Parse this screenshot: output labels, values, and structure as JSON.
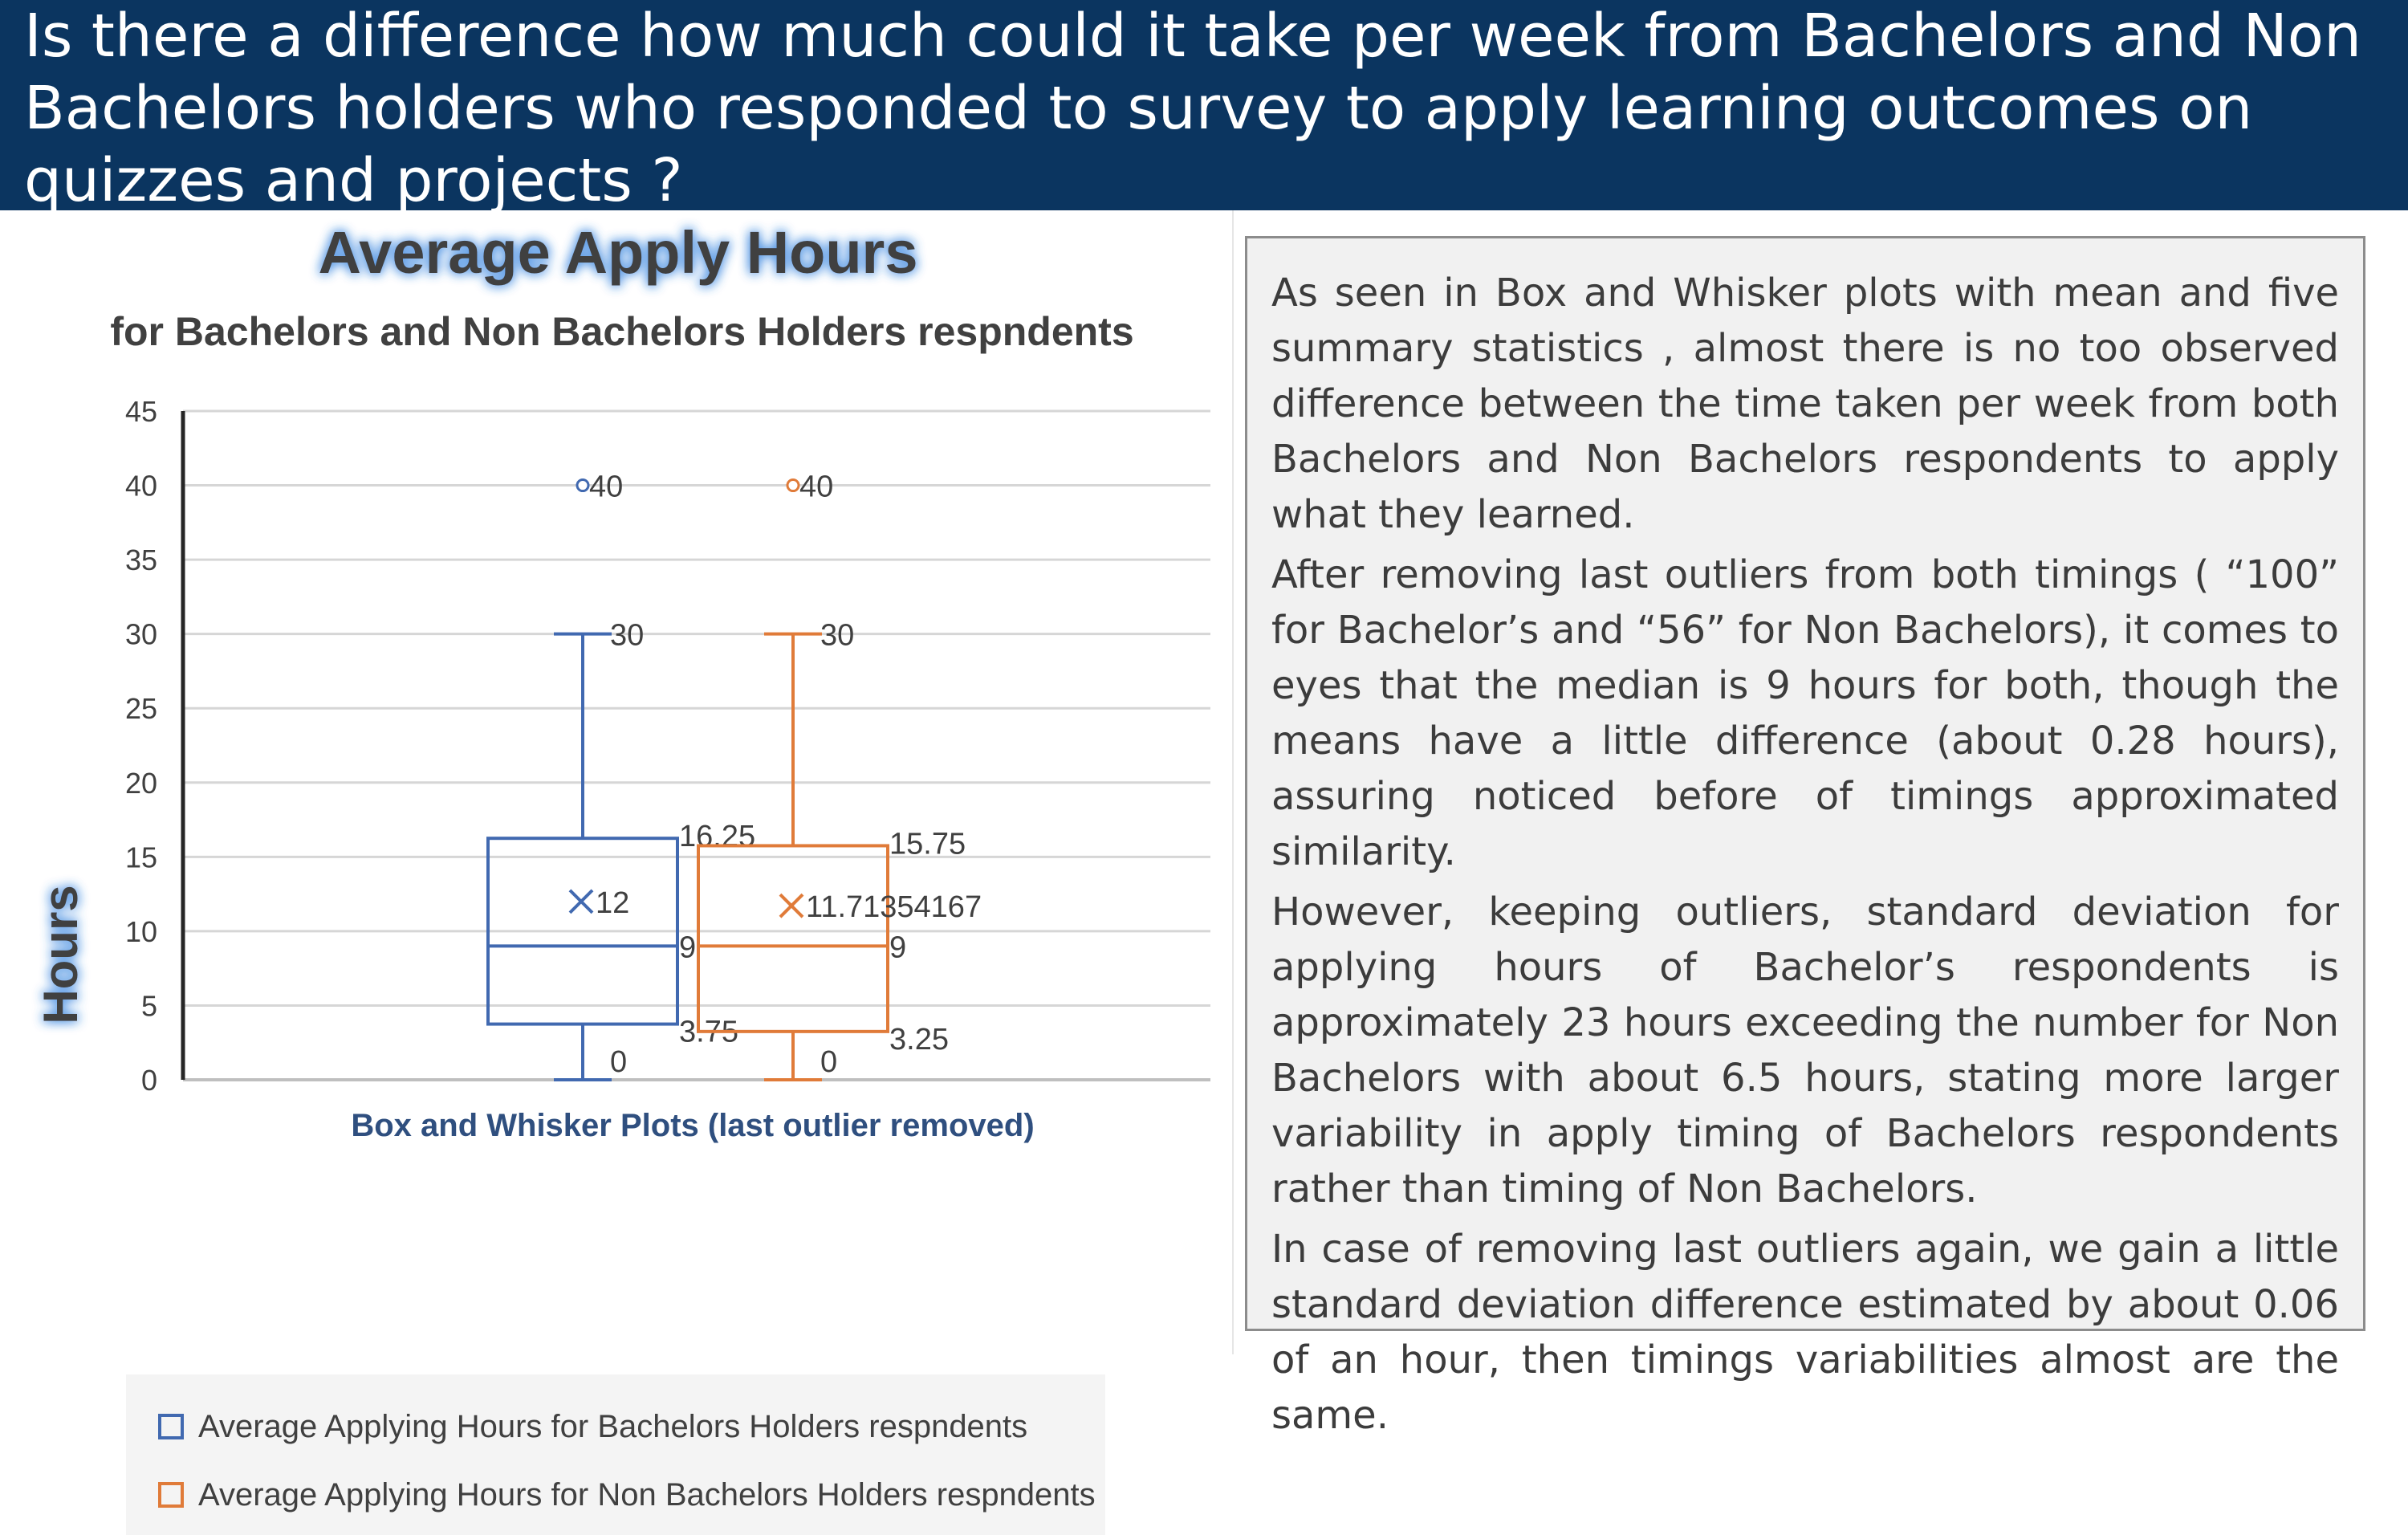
{
  "header": {
    "title": "Is there a difference how much could it take per week from Bachelors and Non Bachelors holders who responded to survey to apply learning outcomes on quizzes and projects ?"
  },
  "colors": {
    "header_bg": "#0b3560",
    "bachelors": "#4169b0",
    "non_bachelors": "#e07b39",
    "title_glow": "#4a90e2"
  },
  "chart_data": {
    "type": "box",
    "title": "Average Apply Hours",
    "subtitle": "for Bachelors and Non Bachelors Holders respndents",
    "ylabel": "Hours",
    "xlabel": "Box and Whisker Plots (last outlier removed)",
    "ylim": [
      0,
      45
    ],
    "yticks": [
      0,
      5,
      10,
      15,
      20,
      25,
      30,
      35,
      40,
      45
    ],
    "grid": true,
    "legend_position": "bottom",
    "series": [
      {
        "name": "Average Applying Hours for Bachelors Holders respndents",
        "color": "#4169b0",
        "min": 0,
        "q1": 3.75,
        "median": 9,
        "q3": 16.25,
        "max": 30,
        "mean": 12,
        "outliers": [
          40
        ],
        "labels": {
          "min": "0",
          "q1": "3.75",
          "median": "9",
          "q3": "16.25",
          "max": "30",
          "mean": "12",
          "outlier": "40"
        }
      },
      {
        "name": "Average Applying Hours for Non Bachelors Holders respndents",
        "color": "#e07b39",
        "min": 0,
        "q1": 3.25,
        "median": 9,
        "q3": 15.75,
        "max": 30,
        "mean": 11.71354167,
        "outliers": [
          40
        ],
        "labels": {
          "min": "0",
          "q1": "3.25",
          "median": "9",
          "q3": "15.75",
          "max": "30",
          "mean": "11.71354167",
          "outlier": "40"
        }
      }
    ]
  },
  "commentary": {
    "paragraphs": [
      "As seen in Box and Whisker plots with mean and five summary statistics , almost there is no too observed difference between the time taken per week from both Bachelors and Non Bachelors respondents to apply what they learned.",
      "After removing last outliers from both timings ( “100” for Bachelor’s and “56” for Non Bachelors), it comes to eyes that the median is 9 hours for both, though the means have a little difference (about 0.28  hours), assuring noticed before of timings approximated similarity.",
      "However, keeping outliers, standard deviation for applying hours of Bachelor’s respondents  is approximately 23 hours exceeding the number for Non  Bachelors with about 6.5 hours, stating more larger variability in apply timing of Bachelors respondents rather than timing of Non Bachelors.",
      "In case of removing last outliers again, we gain a little standard deviation difference estimated by about 0.06 of an hour, then timings variabilities almost are the same."
    ]
  }
}
